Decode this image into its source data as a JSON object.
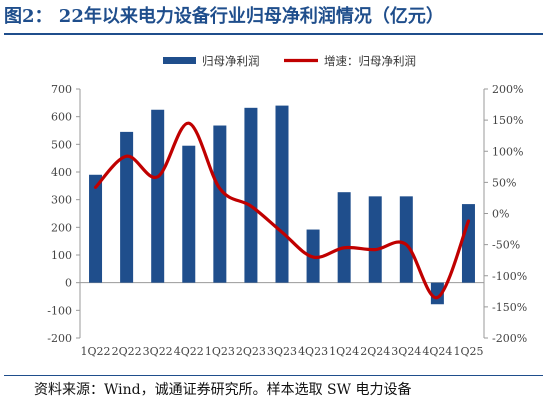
{
  "title": "图2：  22年以来电力设备行业归母净利润情况（亿元）",
  "source": "资料来源：Wind，诚通证券研究所。样本选取 SW 电力设备",
  "colors": {
    "bar": "#1f4e8c",
    "line": "#c00000",
    "title": "#1f4e8c"
  },
  "chart_data": {
    "type": "bar",
    "title": "",
    "categories": [
      "1Q22",
      "2Q22",
      "3Q22",
      "4Q22",
      "1Q23",
      "2Q23",
      "3Q23",
      "4Q23",
      "1Q24",
      "2Q24",
      "3Q24",
      "4Q24",
      "1Q25"
    ],
    "series": [
      {
        "name": "归母净利润",
        "type": "bar",
        "axis": "left",
        "values": [
          390,
          545,
          625,
          495,
          568,
          632,
          640,
          192,
          327,
          312,
          312,
          -78,
          284
        ]
      },
      {
        "name": "增速：归母净利润",
        "type": "line",
        "axis": "right",
        "unit": "%",
        "values": [
          42,
          92,
          59,
          145,
          40,
          12,
          -30,
          -70,
          -55,
          -58,
          -50,
          -135,
          -12
        ]
      }
    ],
    "y_left": {
      "range": [
        -200,
        700
      ],
      "ticks": [
        "-200",
        "-100",
        "0",
        "100",
        "200",
        "300",
        "400",
        "500",
        "600",
        "700"
      ]
    },
    "y_right": {
      "range": [
        -200,
        200
      ],
      "ticks": [
        "-200%",
        "-150%",
        "-100%",
        "-50%",
        "0%",
        "50%",
        "100%",
        "150%",
        "200%"
      ]
    },
    "legend_position": "top-center",
    "grid": false
  }
}
